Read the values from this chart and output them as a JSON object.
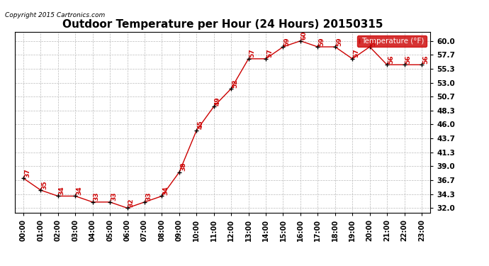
{
  "title": "Outdoor Temperature per Hour (24 Hours) 20150315",
  "copyright": "Copyright 2015 Cartronics.com",
  "legend_label": "Temperature (°F)",
  "hours": [
    "00:00",
    "01:00",
    "02:00",
    "03:00",
    "04:00",
    "05:00",
    "06:00",
    "07:00",
    "08:00",
    "09:00",
    "10:00",
    "11:00",
    "12:00",
    "13:00",
    "14:00",
    "15:00",
    "16:00",
    "17:00",
    "18:00",
    "19:00",
    "20:00",
    "21:00",
    "22:00",
    "23:00"
  ],
  "temperatures": [
    37,
    35,
    34,
    34,
    33,
    33,
    32,
    33,
    34,
    38,
    45,
    49,
    52,
    57,
    57,
    59,
    60,
    59,
    59,
    57,
    59,
    56,
    56,
    56
  ],
  "line_color": "#cc0000",
  "marker_color": "#000000",
  "bg_color": "#ffffff",
  "grid_color": "#bbbbbb",
  "yticks": [
    32.0,
    34.3,
    36.7,
    39.0,
    41.3,
    43.7,
    46.0,
    48.3,
    50.7,
    53.0,
    55.3,
    57.7,
    60.0
  ],
  "ylim": [
    31.2,
    61.5
  ],
  "title_fontsize": 11,
  "legend_bg": "#cc0000",
  "legend_text_color": "#ffffff"
}
